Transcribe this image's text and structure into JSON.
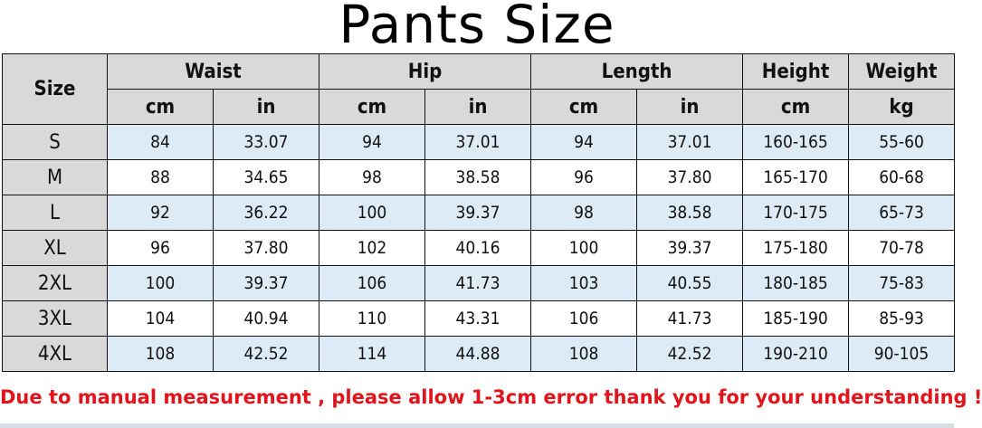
{
  "title": "Pants Size",
  "table": {
    "size_header": "Size",
    "groups": [
      {
        "label": "Waist",
        "units": [
          "cm",
          "in"
        ]
      },
      {
        "label": "Hip",
        "units": [
          "cm",
          "in"
        ]
      },
      {
        "label": "Length",
        "units": [
          "cm",
          "in"
        ]
      },
      {
        "label": "Height",
        "units": [
          "cm"
        ]
      },
      {
        "label": "Weight",
        "units": [
          "kg"
        ]
      }
    ],
    "rows": [
      {
        "size": "S",
        "values": [
          "84",
          "33.07",
          "94",
          "37.01",
          "94",
          "37.01",
          "160-165",
          "55-60"
        ]
      },
      {
        "size": "M",
        "values": [
          "88",
          "34.65",
          "98",
          "38.58",
          "96",
          "37.80",
          "165-170",
          "60-68"
        ]
      },
      {
        "size": "L",
        "values": [
          "92",
          "36.22",
          "100",
          "39.37",
          "98",
          "38.58",
          "170-175",
          "65-73"
        ]
      },
      {
        "size": "XL",
        "values": [
          "96",
          "37.80",
          "102",
          "40.16",
          "100",
          "39.37",
          "175-180",
          "70-78"
        ]
      },
      {
        "size": "2XL",
        "values": [
          "100",
          "39.37",
          "106",
          "41.73",
          "103",
          "40.55",
          "180-185",
          "75-83"
        ]
      },
      {
        "size": "3XL",
        "values": [
          "104",
          "40.94",
          "110",
          "43.31",
          "106",
          "41.73",
          "185-190",
          "85-93"
        ]
      },
      {
        "size": "4XL",
        "values": [
          "108",
          "42.52",
          "114",
          "44.88",
          "108",
          "42.52",
          "190-210",
          "90-105"
        ]
      }
    ]
  },
  "note": "Due to manual measurement , please allow 1-3cm error thank you for your understanding !",
  "colors": {
    "header_bg": "#d9d9d9",
    "alt_row_bg": "#ddebf7",
    "note_text": "#e0141b"
  }
}
